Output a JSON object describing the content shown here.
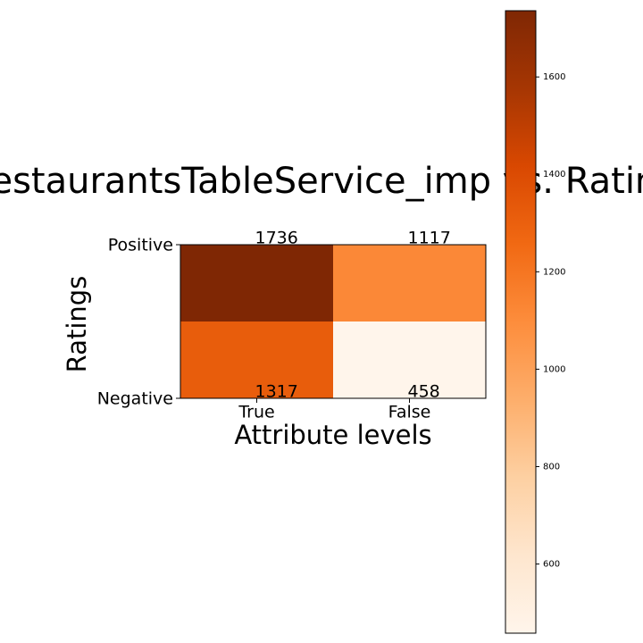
{
  "chart_data": {
    "type": "heatmap",
    "title": "RestaurantsTableService_imp vs. Ratings",
    "xlabel": "Attribute levels",
    "ylabel": "Ratings",
    "x_categories": [
      "True",
      "False"
    ],
    "y_categories": [
      "Positive",
      "Negative"
    ],
    "values": [
      [
        1736,
        1117
      ],
      [
        1317,
        458
      ]
    ],
    "colormap": [
      "#fff5eb",
      "#fee6ce",
      "#fdd0a2",
      "#fdae6b",
      "#fd8d3c",
      "#f16913",
      "#d94801",
      "#a63603",
      "#7f2704"
    ],
    "clim": [
      458,
      1736
    ],
    "cticks": [
      600,
      800,
      1000,
      1200,
      1400,
      1600
    ]
  }
}
